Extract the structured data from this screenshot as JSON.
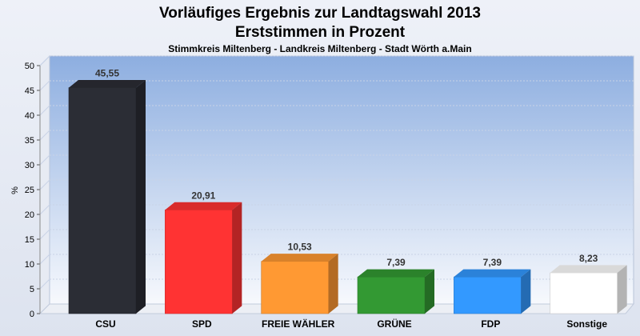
{
  "chart_data": {
    "type": "bar",
    "title": "Vorläufiges Ergebnis zur Landtagswahl 2013",
    "subtitle": "Erststimmen in Prozent",
    "subsubtitle": "Stimmkreis Miltenberg - Landkreis Miltenberg - Stadt Wörth a.Main",
    "ylabel": "%",
    "ylim": [
      0,
      50
    ],
    "yticks": [
      0,
      5,
      10,
      15,
      20,
      25,
      30,
      35,
      40,
      45,
      50
    ],
    "grid": true,
    "categories": [
      "CSU",
      "SPD",
      "FREIE WÄHLER",
      "GRÜNE",
      "FDP",
      "Sonstige"
    ],
    "values": [
      45.55,
      20.91,
      10.53,
      7.39,
      7.39,
      8.23
    ],
    "value_labels": [
      "45,55",
      "20,91",
      "10,53",
      "7,39",
      "7,39",
      "8,23"
    ],
    "colors": [
      "#2b2d35",
      "#ff3333",
      "#ff9933",
      "#339933",
      "#3399ff",
      "#ffffff"
    ]
  }
}
